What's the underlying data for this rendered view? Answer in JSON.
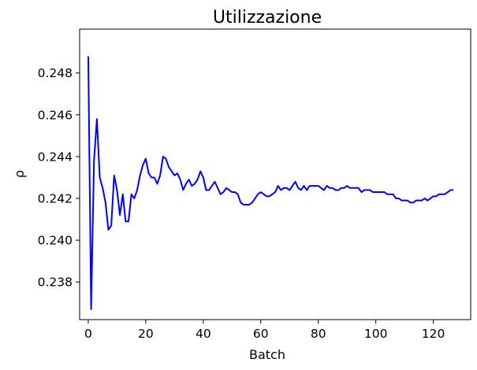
{
  "chart_data": {
    "type": "line",
    "title": "Utilizzazione",
    "xlabel": "Batch",
    "ylabel": "ρ",
    "xlim": [
      -3,
      133
    ],
    "ylim": [
      0.2362,
      0.2501
    ],
    "xticks": [
      0,
      20,
      40,
      60,
      80,
      100,
      120
    ],
    "yticks": [
      0.238,
      0.24,
      0.242,
      0.244,
      0.246,
      0.248
    ],
    "ytick_labels": [
      "0.238",
      "0.240",
      "0.242",
      "0.244",
      "0.246",
      "0.248"
    ],
    "grid": false,
    "line_color": "#0000ff",
    "series": [
      {
        "x": [
          0,
          1,
          2,
          3,
          4,
          5,
          6,
          7,
          8,
          9,
          10,
          11,
          12,
          13,
          14,
          15,
          16,
          17,
          18,
          19,
          20,
          21,
          22,
          23,
          24,
          25,
          26,
          27,
          28,
          29,
          30,
          31,
          32,
          33,
          34,
          35,
          36,
          37,
          38,
          39,
          40,
          41,
          42,
          43,
          44,
          45,
          46,
          47,
          48,
          49,
          50,
          51,
          52,
          53,
          54,
          55,
          56,
          57,
          58,
          59,
          60,
          61,
          62,
          63,
          64,
          65,
          66,
          67,
          68,
          69,
          70,
          71,
          72,
          73,
          74,
          75,
          76,
          77,
          78,
          79,
          80,
          81,
          82,
          83,
          84,
          85,
          86,
          87,
          88,
          89,
          90,
          91,
          92,
          93,
          94,
          95,
          96,
          97,
          98,
          99,
          100,
          101,
          102,
          103,
          104,
          105,
          106,
          107,
          108,
          109,
          110,
          111,
          112,
          113,
          114,
          115,
          116,
          117,
          118,
          119,
          120,
          121,
          122,
          123,
          124,
          125,
          126,
          127
        ],
        "values": [
          0.2488,
          0.2367,
          0.2438,
          0.2458,
          0.243,
          0.2425,
          0.2418,
          0.2405,
          0.2407,
          0.2431,
          0.2424,
          0.2412,
          0.2422,
          0.2409,
          0.2409,
          0.2422,
          0.242,
          0.2424,
          0.2431,
          0.2436,
          0.2439,
          0.2432,
          0.243,
          0.243,
          0.2427,
          0.2431,
          0.244,
          0.2439,
          0.2435,
          0.2433,
          0.2431,
          0.2432,
          0.2429,
          0.2424,
          0.2427,
          0.2429,
          0.2426,
          0.2427,
          0.2429,
          0.2433,
          0.243,
          0.2424,
          0.2424,
          0.2426,
          0.2428,
          0.2425,
          0.2422,
          0.2423,
          0.2425,
          0.2424,
          0.2423,
          0.2423,
          0.2422,
          0.2418,
          0.2417,
          0.2417,
          0.2417,
          0.2418,
          0.242,
          0.2422,
          0.2423,
          0.2422,
          0.2421,
          0.2421,
          0.2422,
          0.2423,
          0.2426,
          0.2424,
          0.2425,
          0.2425,
          0.2424,
          0.2426,
          0.2428,
          0.2425,
          0.2424,
          0.2426,
          0.2424,
          0.2426,
          0.2426,
          0.2426,
          0.2426,
          0.2425,
          0.2424,
          0.2426,
          0.2425,
          0.2425,
          0.2424,
          0.2424,
          0.2425,
          0.2425,
          0.2426,
          0.2425,
          0.2425,
          0.2425,
          0.2425,
          0.2423,
          0.2424,
          0.2424,
          0.2424,
          0.2423,
          0.2423,
          0.2423,
          0.2423,
          0.2423,
          0.2422,
          0.2422,
          0.2422,
          0.242,
          0.242,
          0.2419,
          0.2419,
          0.2419,
          0.2418,
          0.2418,
          0.2419,
          0.2419,
          0.2419,
          0.242,
          0.2419,
          0.242,
          0.2421,
          0.2421,
          0.2422,
          0.2422,
          0.2422,
          0.2423,
          0.2424,
          0.2424
        ]
      }
    ]
  }
}
